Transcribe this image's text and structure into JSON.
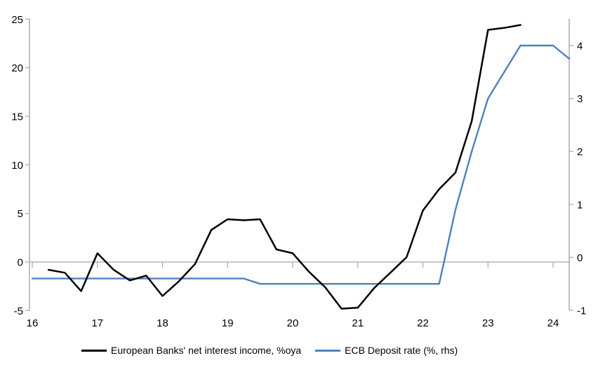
{
  "chart_data": {
    "type": "line",
    "title": "",
    "x_axis": {
      "ticks": [
        16,
        17,
        18,
        19,
        20,
        21,
        22,
        23,
        24
      ],
      "range": [
        16,
        24.25
      ]
    },
    "left_axis": {
      "ticks": [
        25,
        20,
        15,
        10,
        5,
        0,
        -5
      ],
      "range": [
        -5,
        25
      ]
    },
    "right_axis": {
      "ticks": [
        4,
        3,
        2,
        1,
        0,
        -1
      ],
      "range": [
        -1,
        4.5
      ]
    },
    "grid": "zero-line-only",
    "legend_position": "bottom-center",
    "series": [
      {
        "name": "European Banks' net interest income, %oya",
        "axis": "left",
        "color": "#000000",
        "x": [
          16.25,
          16.5,
          16.75,
          17,
          17.25,
          17.5,
          17.75,
          18,
          18.25,
          18.5,
          18.75,
          19,
          19.25,
          19.5,
          19.75,
          20,
          20.25,
          20.5,
          20.75,
          21,
          21.25,
          21.5,
          21.75,
          22,
          22.25,
          22.5,
          22.75,
          23,
          23.25,
          23.5
        ],
        "values": [
          -0.8,
          -1.1,
          -3,
          0.9,
          -0.8,
          -1.9,
          -1.4,
          -3.5,
          -2,
          -0.2,
          3.3,
          4.4,
          4.3,
          4.4,
          1.3,
          0.9,
          -1,
          -2.6,
          -4.8,
          -4.7,
          -2.7,
          -1.1,
          0.5,
          5.3,
          7.5,
          9.2,
          14.5,
          23.9,
          24.1,
          24.4
        ]
      },
      {
        "name": "ECB Deposit rate (%, rhs)",
        "axis": "right",
        "color": "#4f81bd",
        "x": [
          16,
          16.25,
          16.5,
          16.75,
          17,
          17.25,
          17.5,
          17.75,
          18,
          18.25,
          18.5,
          18.75,
          19,
          19.25,
          19.5,
          19.75,
          20,
          20.25,
          20.5,
          20.75,
          21,
          21.25,
          21.5,
          21.75,
          22,
          22.25,
          22.5,
          22.75,
          23,
          23.25,
          23.5,
          23.75,
          24,
          24.25
        ],
        "values": [
          -0.4,
          -0.4,
          -0.4,
          -0.4,
          -0.4,
          -0.4,
          -0.4,
          -0.4,
          -0.4,
          -0.4,
          -0.4,
          -0.4,
          -0.4,
          -0.4,
          -0.5,
          -0.5,
          -0.5,
          -0.5,
          -0.5,
          -0.5,
          -0.5,
          -0.5,
          -0.5,
          -0.5,
          -0.5,
          -0.5,
          0.9,
          2,
          3,
          3.5,
          4,
          4,
          4,
          3.75
        ]
      }
    ],
    "colors": {
      "axis": "#a6a6a6",
      "zero_line": "#a6a6a6",
      "text": "#000000",
      "background": "#ffffff"
    }
  },
  "legend": {
    "series1_label": "European Banks' net interest income, %oya",
    "series2_label": "ECB Deposit rate (%, rhs)"
  }
}
